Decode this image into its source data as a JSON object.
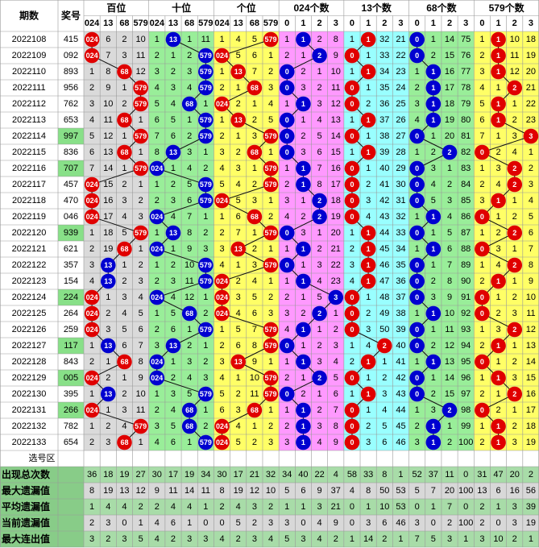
{
  "header": {
    "issue": "期数",
    "number": "奖号",
    "groups": [
      {
        "name": "百位",
        "labels": [
          "024",
          "13",
          "68",
          "579"
        ],
        "bg": "#dadada",
        "colors": [
          "#e00000",
          "#0000d0",
          "#e00000",
          "#e00000"
        ]
      },
      {
        "name": "十位",
        "labels": [
          "024",
          "13",
          "68",
          "579"
        ],
        "bg": "#99ee99",
        "colors": [
          "#0000d0",
          "#0000d0",
          "#0000d0",
          "#0000d0"
        ]
      },
      {
        "name": "个位",
        "labels": [
          "024",
          "13",
          "68",
          "579"
        ],
        "bg": "#ffff66",
        "colors": [
          "#e00000",
          "#e00000",
          "#e00000",
          "#e00000"
        ]
      },
      {
        "name": "024个数",
        "labels": [
          "0",
          "1",
          "2",
          "3"
        ],
        "bg": "#ff99ff",
        "colors": [
          "#0000d0",
          "#0000d0",
          "#0000d0",
          "#0000d0"
        ]
      },
      {
        "name": "13个数",
        "labels": [
          "0",
          "1",
          "2",
          "3"
        ],
        "bg": "#99ffff",
        "colors": [
          "#e00000",
          "#e00000",
          "#e00000",
          "#e00000"
        ]
      },
      {
        "name": "68个数",
        "labels": [
          "0",
          "1",
          "2",
          "3"
        ],
        "bg": "#99ee99",
        "colors": [
          "#0000d0",
          "#0000d0",
          "#0000d0",
          "#0000d0"
        ]
      },
      {
        "name": "579个数",
        "labels": [
          "0",
          "1",
          "2",
          "3"
        ],
        "bg": "#ffff66",
        "colors": [
          "#e00000",
          "#e00000",
          "#e00000",
          "#e00000"
        ]
      }
    ]
  },
  "pair_bg": "#88e088",
  "rows": [
    {
      "issue": "2022108",
      "number": "415",
      "cells": [
        "024",
        6,
        2,
        10,
        1,
        "13",
        1,
        11,
        1,
        4,
        5,
        "579",
        1,
        "1",
        2,
        8,
        1,
        "1",
        32,
        21,
        "0",
        1,
        14,
        75,
        1,
        "1",
        10,
        18
      ]
    },
    {
      "issue": "2022109",
      "number": "092",
      "cells": [
        "024",
        7,
        3,
        11,
        2,
        1,
        2,
        "579",
        "024",
        5,
        6,
        1,
        2,
        1,
        "2",
        9,
        "0",
        1,
        33,
        22,
        "0",
        2,
        15,
        76,
        2,
        "1",
        11,
        19
      ]
    },
    {
      "issue": "2022110",
      "number": "893",
      "cells": [
        1,
        8,
        "68",
        12,
        3,
        2,
        3,
        "579",
        1,
        "13",
        7,
        2,
        "0",
        2,
        1,
        10,
        1,
        "1",
        34,
        23,
        1,
        "1",
        16,
        77,
        3,
        "1",
        12,
        20
      ]
    },
    {
      "issue": "2022111",
      "number": "956",
      "cells": [
        2,
        9,
        1,
        "579",
        4,
        3,
        4,
        "579",
        2,
        1,
        "68",
        3,
        "0",
        3,
        2,
        11,
        "0",
        1,
        35,
        24,
        2,
        "1",
        17,
        78,
        4,
        1,
        "2",
        21
      ]
    },
    {
      "issue": "2022112",
      "number": "762",
      "cells": [
        3,
        10,
        2,
        "579",
        5,
        4,
        "68",
        1,
        "024",
        2,
        1,
        4,
        1,
        "1",
        3,
        12,
        "0",
        2,
        36,
        25,
        3,
        "1",
        18,
        79,
        5,
        "1",
        1,
        22
      ]
    },
    {
      "issue": "2022113",
      "number": "653",
      "cells": [
        4,
        11,
        "68",
        1,
        6,
        5,
        1,
        "579",
        1,
        "13",
        2,
        5,
        "0",
        1,
        4,
        13,
        1,
        "1",
        37,
        26,
        4,
        "1",
        19,
        80,
        6,
        "1",
        2,
        23
      ]
    },
    {
      "issue": "2022114",
      "number": "997",
      "cells": [
        5,
        12,
        1,
        "579",
        7,
        6,
        2,
        "579",
        2,
        1,
        3,
        "579",
        "0",
        2,
        5,
        14,
        "0",
        1,
        38,
        27,
        "0",
        1,
        20,
        81,
        7,
        1,
        3,
        "3"
      ]
    },
    {
      "issue": "2022115",
      "number": "836",
      "cells": [
        6,
        13,
        "68",
        1,
        8,
        "13",
        3,
        1,
        3,
        2,
        "68",
        1,
        "0",
        3,
        6,
        15,
        1,
        "1",
        39,
        28,
        1,
        2,
        "2",
        82,
        "0",
        2,
        4,
        1
      ]
    },
    {
      "issue": "2022116",
      "number": "707",
      "cells": [
        7,
        14,
        1,
        "579",
        "024",
        1,
        4,
        2,
        4,
        3,
        1,
        "579",
        1,
        "1",
        7,
        16,
        "0",
        1,
        40,
        29,
        "0",
        3,
        1,
        83,
        1,
        3,
        "2",
        2
      ]
    },
    {
      "issue": "2022117",
      "number": "457",
      "cells": [
        "024",
        15,
        2,
        1,
        1,
        2,
        5,
        "579",
        5,
        4,
        2,
        "579",
        2,
        "1",
        8,
        17,
        "0",
        2,
        41,
        30,
        "0",
        4,
        2,
        84,
        2,
        4,
        "2",
        3
      ]
    },
    {
      "issue": "2022118",
      "number": "470",
      "cells": [
        "024",
        16,
        3,
        2,
        2,
        3,
        6,
        "579",
        "024",
        5,
        3,
        1,
        3,
        1,
        "2",
        18,
        "0",
        3,
        42,
        31,
        "0",
        5,
        3,
        85,
        3,
        "1",
        1,
        4
      ]
    },
    {
      "issue": "2022119",
      "number": "046",
      "cells": [
        "024",
        17,
        4,
        3,
        "024",
        4,
        7,
        1,
        1,
        6,
        "68",
        2,
        4,
        2,
        "2",
        19,
        "0",
        4,
        43,
        32,
        1,
        "1",
        4,
        86,
        "0",
        1,
        2,
        5
      ]
    },
    {
      "issue": "2022120",
      "number": "939",
      "cells": [
        1,
        18,
        5,
        "579",
        1,
        "13",
        8,
        2,
        2,
        7,
        1,
        "579",
        "0",
        3,
        1,
        20,
        1,
        "1",
        44,
        33,
        "0",
        1,
        5,
        87,
        1,
        2,
        "2",
        6
      ]
    },
    {
      "issue": "2022121",
      "number": "621",
      "cells": [
        2,
        19,
        "68",
        1,
        "024",
        1,
        9,
        3,
        3,
        "13",
        2,
        1,
        1,
        "1",
        2,
        21,
        2,
        "1",
        45,
        34,
        1,
        "1",
        6,
        88,
        "0",
        3,
        1,
        7
      ]
    },
    {
      "issue": "2022122",
      "number": "357",
      "cells": [
        3,
        "13",
        1,
        2,
        1,
        2,
        10,
        "579",
        4,
        1,
        3,
        "579",
        "0",
        1,
        3,
        22,
        3,
        "1",
        46,
        35,
        "0",
        1,
        7,
        89,
        1,
        4,
        "2",
        8
      ]
    },
    {
      "issue": "2022123",
      "number": "154",
      "cells": [
        4,
        "13",
        2,
        3,
        2,
        3,
        11,
        "579",
        "024",
        2,
        4,
        1,
        1,
        "1",
        4,
        23,
        4,
        "1",
        47,
        36,
        "0",
        2,
        8,
        90,
        2,
        "1",
        1,
        9
      ]
    },
    {
      "issue": "2022124",
      "number": "224",
      "cells": [
        "024",
        1,
        3,
        4,
        "024",
        4,
        12,
        1,
        "024",
        3,
        5,
        2,
        2,
        1,
        5,
        "3",
        "0",
        1,
        48,
        37,
        "0",
        3,
        9,
        91,
        "0",
        1,
        2,
        10
      ]
    },
    {
      "issue": "2022125",
      "number": "264",
      "cells": [
        "024",
        2,
        4,
        5,
        1,
        5,
        "68",
        2,
        "024",
        4,
        6,
        3,
        3,
        2,
        "2",
        1,
        "0",
        2,
        49,
        38,
        1,
        "1",
        10,
        92,
        "0",
        2,
        3,
        11
      ]
    },
    {
      "issue": "2022126",
      "number": "259",
      "cells": [
        "024",
        3,
        5,
        6,
        2,
        6,
        1,
        "579",
        1,
        5,
        7,
        "579",
        4,
        "1",
        1,
        2,
        "0",
        3,
        50,
        39,
        "0",
        1,
        11,
        93,
        1,
        3,
        "2",
        12
      ]
    },
    {
      "issue": "2022127",
      "number": "117",
      "cells": [
        1,
        "13",
        6,
        7,
        3,
        "13",
        2,
        1,
        2,
        6,
        8,
        "579",
        "0",
        1,
        2,
        3,
        1,
        4,
        "2",
        40,
        "0",
        2,
        12,
        94,
        2,
        "1",
        1,
        13
      ]
    },
    {
      "issue": "2022128",
      "number": "843",
      "cells": [
        2,
        1,
        "68",
        8,
        "024",
        1,
        3,
        2,
        3,
        "13",
        9,
        1,
        1,
        "1",
        3,
        4,
        2,
        "1",
        1,
        41,
        1,
        "1",
        13,
        95,
        "0",
        1,
        2,
        14
      ]
    },
    {
      "issue": "2022129",
      "number": "005",
      "cells": [
        "024",
        2,
        1,
        9,
        "024",
        2,
        4,
        3,
        4,
        1,
        10,
        "579",
        2,
        1,
        "2",
        5,
        "0",
        1,
        2,
        42,
        "0",
        1,
        14,
        96,
        1,
        "1",
        3,
        15
      ]
    },
    {
      "issue": "2022130",
      "number": "395",
      "cells": [
        1,
        "13",
        2,
        10,
        1,
        3,
        5,
        "579",
        5,
        2,
        11,
        "579",
        "0",
        2,
        1,
        6,
        1,
        "1",
        3,
        43,
        "0",
        2,
        15,
        97,
        2,
        1,
        "2",
        16
      ]
    },
    {
      "issue": "2022131",
      "number": "266",
      "cells": [
        "024",
        1,
        3,
        11,
        2,
        4,
        "68",
        1,
        6,
        3,
        "68",
        1,
        1,
        "1",
        2,
        7,
        "0",
        1,
        4,
        44,
        1,
        3,
        "2",
        98,
        "0",
        2,
        1,
        17
      ]
    },
    {
      "issue": "2022132",
      "number": "782",
      "cells": [
        1,
        2,
        4,
        "579",
        3,
        5,
        "68",
        2,
        "024",
        4,
        1,
        2,
        2,
        "1",
        3,
        8,
        "0",
        2,
        5,
        45,
        2,
        "1",
        1,
        99,
        1,
        "1",
        2,
        18
      ]
    },
    {
      "issue": "2022133",
      "number": "654",
      "cells": [
        2,
        3,
        "68",
        1,
        4,
        6,
        1,
        "579",
        "024",
        5,
        2,
        3,
        3,
        "1",
        4,
        9,
        "0",
        3,
        6,
        46,
        3,
        "1",
        2,
        100,
        2,
        "1",
        3,
        19
      ]
    }
  ],
  "select_label": "选号区",
  "stats": [
    {
      "label": "出现总次数",
      "values": [
        36,
        18,
        19,
        27,
        30,
        17,
        19,
        34,
        30,
        17,
        21,
        32,
        34,
        40,
        22,
        4,
        58,
        33,
        8,
        1,
        52,
        37,
        11,
        0,
        31,
        47,
        20,
        2
      ]
    },
    {
      "label": "最大遗漏值",
      "values": [
        8,
        19,
        13,
        12,
        9,
        11,
        14,
        11,
        8,
        19,
        12,
        10,
        5,
        6,
        9,
        37,
        4,
        8,
        50,
        53,
        5,
        7,
        20,
        100,
        13,
        6,
        16,
        56
      ]
    },
    {
      "label": "平均遗漏值",
      "values": [
        1,
        4,
        4,
        2,
        2,
        4,
        4,
        1,
        2,
        4,
        3,
        2,
        1,
        1,
        3,
        21,
        0,
        1,
        10,
        53,
        0,
        1,
        7,
        0,
        2,
        1,
        3,
        39
      ]
    },
    {
      "label": "当前遗漏值",
      "values": [
        2,
        3,
        0,
        1,
        4,
        6,
        1,
        0,
        0,
        5,
        2,
        3,
        3,
        0,
        4,
        9,
        0,
        3,
        6,
        46,
        3,
        0,
        2,
        100,
        2,
        0,
        3,
        19
      ]
    },
    {
      "label": "最大连出值",
      "values": [
        3,
        2,
        3,
        5,
        4,
        2,
        3,
        3,
        4,
        2,
        3,
        4,
        5,
        3,
        4,
        2,
        1,
        14,
        2,
        1,
        7,
        5,
        3,
        1,
        3,
        10,
        2,
        1
      ]
    }
  ]
}
